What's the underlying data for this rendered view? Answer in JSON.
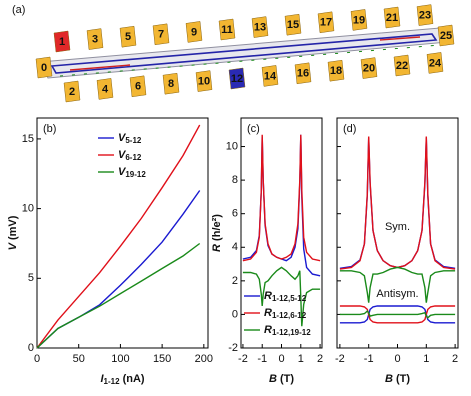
{
  "panel_a": {
    "label": "(a)",
    "contacts": [
      {
        "label": "0",
        "color": "#f2b632"
      },
      {
        "label": "1",
        "color": "#e02828"
      },
      {
        "label": "2",
        "color": "#f2b632"
      },
      {
        "label": "3",
        "color": "#f2b632"
      },
      {
        "label": "4",
        "color": "#f2b632"
      },
      {
        "label": "5",
        "color": "#f2b632"
      },
      {
        "label": "6",
        "color": "#f2b632"
      },
      {
        "label": "7",
        "color": "#f2b632"
      },
      {
        "label": "8",
        "color": "#f2b632"
      },
      {
        "label": "9",
        "color": "#f2b632"
      },
      {
        "label": "10",
        "color": "#f2b632"
      },
      {
        "label": "11",
        "color": "#f2b632"
      },
      {
        "label": "12",
        "color": "#2a2ab4"
      },
      {
        "label": "13",
        "color": "#f2b632"
      },
      {
        "label": "14",
        "color": "#f2b632"
      },
      {
        "label": "15",
        "color": "#f2b632"
      },
      {
        "label": "16",
        "color": "#f2b632"
      },
      {
        "label": "17",
        "color": "#f2b632"
      },
      {
        "label": "18",
        "color": "#f2b632"
      },
      {
        "label": "19",
        "color": "#f2b632"
      },
      {
        "label": "20",
        "color": "#f2b632"
      },
      {
        "label": "21",
        "color": "#f2b632"
      },
      {
        "label": "22",
        "color": "#f2b632"
      },
      {
        "label": "23",
        "color": "#f2b632"
      },
      {
        "label": "24",
        "color": "#f2b632"
      },
      {
        "label": "25",
        "color": "#f2b632"
      }
    ]
  },
  "chart_data": [
    {
      "type": "line",
      "label": "(b)",
      "xlabel": "I1-12 (nA)",
      "ylabel": "V (mV)",
      "x": [
        0,
        25,
        50,
        75,
        100,
        125,
        150,
        175,
        195
      ],
      "xlim": [
        0,
        205
      ],
      "xticks": [
        0,
        50,
        100,
        150,
        200
      ],
      "ylim": [
        0,
        16.5
      ],
      "yticks": [
        0,
        5,
        10,
        15
      ],
      "ytick_labels": true,
      "legend": "upper right",
      "series": [
        {
          "name": "V5-12",
          "color": "#1a1ad0",
          "values": [
            0,
            1.4,
            2.2,
            3.1,
            4.5,
            6.0,
            7.6,
            9.6,
            11.3
          ]
        },
        {
          "name": "V6-12",
          "color": "#e0101a",
          "values": [
            0,
            2.0,
            3.7,
            5.4,
            7.3,
            9.3,
            11.5,
            13.8,
            16.0
          ]
        },
        {
          "name": "V19-12",
          "color": "#1a8a1a",
          "values": [
            0,
            1.4,
            2.2,
            3.0,
            3.9,
            4.8,
            5.7,
            6.6,
            7.5
          ]
        }
      ]
    },
    {
      "type": "line",
      "label": "(c)",
      "xlabel": "B (T)",
      "ylabel": "R (h/e²)",
      "x": [
        -2,
        -1.6,
        -1.3,
        -1.15,
        -1.05,
        -1,
        -0.95,
        -0.85,
        -0.7,
        -0.5,
        -0.25,
        0,
        0.25,
        0.5,
        0.7,
        0.85,
        0.95,
        1,
        1.05,
        1.15,
        1.3,
        1.6,
        2
      ],
      "xlim": [
        -2.1,
        2.1
      ],
      "xticks": [
        -2,
        -1,
        0,
        1,
        2
      ],
      "ylim": [
        -2,
        11.7
      ],
      "yticks": [
        -2,
        0,
        2,
        4,
        6,
        8,
        10
      ],
      "ytick_labels": true,
      "legend": "lower left",
      "series": [
        {
          "name": "R1-12,5-12",
          "color": "#1a1ad0",
          "values": [
            3.3,
            3.4,
            3.8,
            4.7,
            7.4,
            10.6,
            8.0,
            5.3,
            4.1,
            3.6,
            3.4,
            3.3,
            3.2,
            3.4,
            4.0,
            5.1,
            7.8,
            10.7,
            7.0,
            3.9,
            2.8,
            2.4,
            2.3
          ]
        },
        {
          "name": "R1-12,6-12",
          "color": "#e0101a",
          "values": [
            3.2,
            3.3,
            3.7,
            4.6,
            7.4,
            10.7,
            8.0,
            5.4,
            4.2,
            3.6,
            3.4,
            3.3,
            3.4,
            3.6,
            4.2,
            5.4,
            8.0,
            10.7,
            7.4,
            4.6,
            3.7,
            3.3,
            3.2
          ]
        },
        {
          "name": "R1-12,19-12",
          "color": "#1a8a1a",
          "values": [
            2.5,
            2.5,
            2.4,
            2.1,
            1.2,
            0.5,
            1.2,
            1.9,
            2.0,
            2.3,
            2.6,
            2.8,
            2.6,
            2.3,
            2.1,
            2.3,
            2.6,
            1.0,
            -0.7,
            0.6,
            1.3,
            1.5,
            1.5
          ]
        }
      ]
    },
    {
      "type": "line",
      "label": "(d)",
      "xlabel": "B (T)",
      "x": [
        -2,
        -1.6,
        -1.3,
        -1.15,
        -1.05,
        -1,
        -0.95,
        -0.85,
        -0.7,
        -0.5,
        -0.25,
        0,
        0.25,
        0.5,
        0.7,
        0.85,
        0.95,
        1,
        1.05,
        1.15,
        1.3,
        1.6,
        2
      ],
      "xlim": [
        -2.1,
        2.1
      ],
      "xticks": [
        -2,
        -1,
        0,
        1,
        2
      ],
      "ylim": [
        -2,
        11.7
      ],
      "yticks": [
        -2,
        0,
        2,
        4,
        6,
        8,
        10
      ],
      "ytick_labels": false,
      "annotations": [
        {
          "text": "Sym.",
          "x": 0,
          "y": 5.2
        },
        {
          "text": "Antisym.",
          "x": 0,
          "y": 1.2
        }
      ],
      "series": [
        {
          "color": "#1a1ad0",
          "values": [
            2.75,
            2.85,
            3.25,
            4.2,
            7.1,
            10.5,
            7.8,
            5.0,
            3.8,
            3.2,
            2.9,
            2.8,
            2.9,
            3.2,
            3.8,
            5.0,
            7.8,
            10.5,
            7.1,
            4.2,
            3.25,
            2.85,
            2.75
          ]
        },
        {
          "color": "#e0101a",
          "values": [
            2.7,
            2.8,
            3.2,
            4.2,
            7.2,
            10.6,
            7.9,
            5.0,
            3.8,
            3.2,
            2.9,
            2.8,
            2.9,
            3.2,
            3.8,
            5.0,
            7.9,
            10.6,
            7.2,
            4.2,
            3.2,
            2.8,
            2.7
          ]
        },
        {
          "color": "#1a8a1a",
          "values": [
            2.6,
            2.6,
            2.5,
            2.3,
            1.3,
            0.7,
            1.6,
            2.4,
            2.4,
            2.5,
            2.7,
            2.8,
            2.7,
            2.5,
            2.4,
            2.4,
            1.6,
            0.7,
            1.3,
            2.3,
            2.5,
            2.6,
            2.6
          ]
        },
        {
          "color": "#1a1ad0",
          "values": [
            -0.5,
            -0.5,
            -0.5,
            -0.45,
            -0.3,
            0,
            0.3,
            0.45,
            0.5,
            0.5,
            0.5,
            0.5,
            0.5,
            0.5,
            0.5,
            0.45,
            0.3,
            0,
            -0.3,
            -0.45,
            -0.5,
            -0.5,
            -0.5
          ]
        },
        {
          "color": "#e0101a",
          "values": [
            0.5,
            0.5,
            0.5,
            0.45,
            0.3,
            0,
            -0.3,
            -0.45,
            -0.5,
            -0.5,
            -0.5,
            -0.5,
            -0.5,
            -0.5,
            -0.5,
            -0.45,
            -0.3,
            0,
            0.3,
            0.45,
            0.5,
            0.5,
            0.5
          ]
        },
        {
          "color": "#1a8a1a",
          "values": [
            0,
            0,
            0,
            0.05,
            0.2,
            0.1,
            -0.1,
            -0.05,
            0,
            0,
            0,
            0,
            0,
            0,
            0,
            0.05,
            0.1,
            -0.1,
            -0.2,
            -0.05,
            0,
            0,
            0
          ]
        }
      ]
    }
  ]
}
